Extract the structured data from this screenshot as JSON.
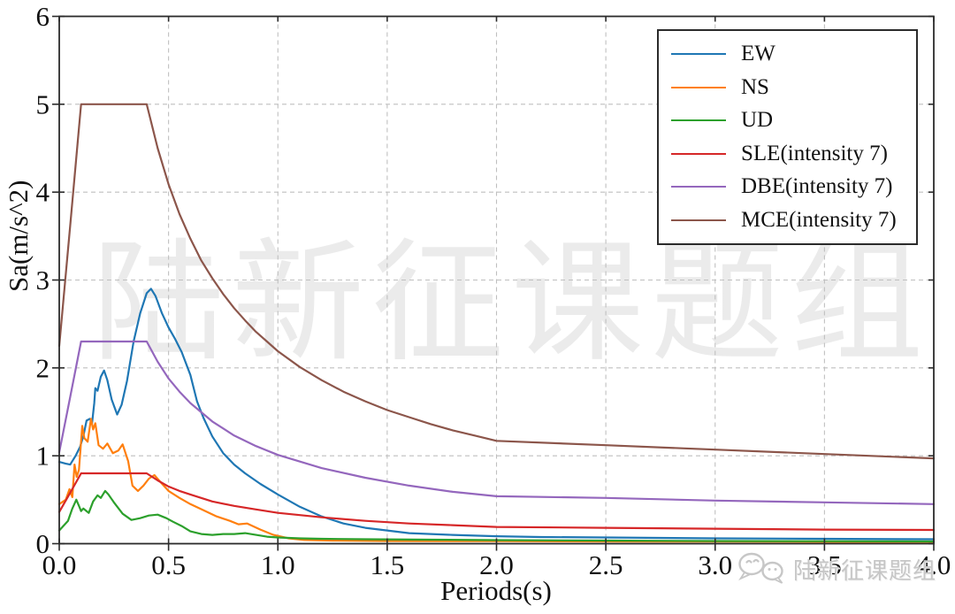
{
  "watermark": {
    "text": "陆新征课题组",
    "logo_text": "陆新征课题组"
  },
  "chart_data": {
    "type": "line",
    "title": "",
    "xlabel": "Periods(s)",
    "ylabel": "Sa(m/s^2)",
    "xlim": [
      0,
      4
    ],
    "ylim": [
      0,
      6
    ],
    "xtick_labels": [
      "0.0",
      "0.5",
      "1.0",
      "1.5",
      "2.0",
      "2.5",
      "3.0",
      "3.5",
      "4.0"
    ],
    "ytick_labels": [
      "0",
      "1",
      "2",
      "3",
      "4",
      "5",
      "6"
    ],
    "grid": true,
    "grid_style": "dashed",
    "grid_color": "#bfbfbf",
    "legend_position": "upper right",
    "series": [
      {
        "name": "EW",
        "color": "#1f77b4",
        "points": [
          [
            0,
            0.93
          ],
          [
            0.03,
            0.91
          ],
          [
            0.05,
            0.9
          ],
          [
            0.075,
            1.0
          ],
          [
            0.095,
            1.1
          ],
          [
            0.11,
            1.22
          ],
          [
            0.125,
            1.4
          ],
          [
            0.14,
            1.42
          ],
          [
            0.15,
            1.37
          ],
          [
            0.16,
            1.6
          ],
          [
            0.165,
            1.77
          ],
          [
            0.175,
            1.74
          ],
          [
            0.19,
            1.9
          ],
          [
            0.205,
            1.97
          ],
          [
            0.22,
            1.86
          ],
          [
            0.24,
            1.64
          ],
          [
            0.265,
            1.47
          ],
          [
            0.285,
            1.58
          ],
          [
            0.31,
            1.85
          ],
          [
            0.34,
            2.3
          ],
          [
            0.37,
            2.62
          ],
          [
            0.4,
            2.85
          ],
          [
            0.42,
            2.9
          ],
          [
            0.44,
            2.82
          ],
          [
            0.47,
            2.62
          ],
          [
            0.5,
            2.46
          ],
          [
            0.53,
            2.33
          ],
          [
            0.56,
            2.18
          ],
          [
            0.6,
            1.92
          ],
          [
            0.63,
            1.62
          ],
          [
            0.66,
            1.43
          ],
          [
            0.7,
            1.22
          ],
          [
            0.75,
            1.03
          ],
          [
            0.8,
            0.9
          ],
          [
            0.85,
            0.8
          ],
          [
            0.92,
            0.68
          ],
          [
            1.0,
            0.56
          ],
          [
            1.1,
            0.42
          ],
          [
            1.2,
            0.31
          ],
          [
            1.3,
            0.23
          ],
          [
            1.4,
            0.18
          ],
          [
            1.5,
            0.15
          ],
          [
            1.6,
            0.12
          ],
          [
            1.8,
            0.1
          ],
          [
            2.0,
            0.085
          ],
          [
            2.2,
            0.075
          ],
          [
            2.5,
            0.07
          ],
          [
            3.0,
            0.06
          ],
          [
            3.5,
            0.055
          ],
          [
            4.0,
            0.05
          ]
        ]
      },
      {
        "name": "NS",
        "color": "#ff7f0e",
        "points": [
          [
            0,
            0.45
          ],
          [
            0.03,
            0.5
          ],
          [
            0.047,
            0.62
          ],
          [
            0.06,
            0.53
          ],
          [
            0.07,
            0.9
          ],
          [
            0.08,
            0.76
          ],
          [
            0.09,
            0.84
          ],
          [
            0.105,
            1.34
          ],
          [
            0.115,
            1.2
          ],
          [
            0.13,
            1.16
          ],
          [
            0.145,
            1.42
          ],
          [
            0.155,
            1.3
          ],
          [
            0.165,
            1.37
          ],
          [
            0.18,
            1.12
          ],
          [
            0.2,
            1.08
          ],
          [
            0.22,
            1.14
          ],
          [
            0.245,
            1.03
          ],
          [
            0.27,
            1.06
          ],
          [
            0.29,
            1.13
          ],
          [
            0.315,
            0.94
          ],
          [
            0.335,
            0.66
          ],
          [
            0.36,
            0.6
          ],
          [
            0.385,
            0.66
          ],
          [
            0.41,
            0.74
          ],
          [
            0.435,
            0.78
          ],
          [
            0.46,
            0.71
          ],
          [
            0.5,
            0.6
          ],
          [
            0.55,
            0.52
          ],
          [
            0.6,
            0.45
          ],
          [
            0.66,
            0.38
          ],
          [
            0.72,
            0.31
          ],
          [
            0.78,
            0.26
          ],
          [
            0.82,
            0.22
          ],
          [
            0.86,
            0.23
          ],
          [
            0.92,
            0.16
          ],
          [
            0.98,
            0.1
          ],
          [
            1.05,
            0.06
          ],
          [
            1.12,
            0.042
          ],
          [
            1.25,
            0.035
          ],
          [
            1.5,
            0.03
          ],
          [
            2.0,
            0.028
          ],
          [
            2.5,
            0.025
          ],
          [
            3.0,
            0.023
          ],
          [
            3.5,
            0.021
          ],
          [
            4.0,
            0.02
          ]
        ]
      },
      {
        "name": "UD",
        "color": "#2ca02c",
        "points": [
          [
            0,
            0.15
          ],
          [
            0.04,
            0.26
          ],
          [
            0.06,
            0.4
          ],
          [
            0.078,
            0.5
          ],
          [
            0.09,
            0.43
          ],
          [
            0.1,
            0.37
          ],
          [
            0.11,
            0.4
          ],
          [
            0.135,
            0.35
          ],
          [
            0.155,
            0.48
          ],
          [
            0.175,
            0.55
          ],
          [
            0.19,
            0.52
          ],
          [
            0.21,
            0.6
          ],
          [
            0.225,
            0.56
          ],
          [
            0.25,
            0.47
          ],
          [
            0.29,
            0.34
          ],
          [
            0.33,
            0.27
          ],
          [
            0.37,
            0.29
          ],
          [
            0.41,
            0.32
          ],
          [
            0.45,
            0.33
          ],
          [
            0.49,
            0.29
          ],
          [
            0.52,
            0.25
          ],
          [
            0.56,
            0.2
          ],
          [
            0.6,
            0.14
          ],
          [
            0.65,
            0.11
          ],
          [
            0.7,
            0.1
          ],
          [
            0.75,
            0.11
          ],
          [
            0.8,
            0.11
          ],
          [
            0.85,
            0.12
          ],
          [
            0.9,
            0.1
          ],
          [
            0.95,
            0.08
          ],
          [
            1.0,
            0.07
          ],
          [
            1.1,
            0.06
          ],
          [
            1.2,
            0.055
          ],
          [
            1.4,
            0.05
          ],
          [
            1.7,
            0.045
          ],
          [
            2.0,
            0.04
          ],
          [
            2.5,
            0.035
          ],
          [
            3.0,
            0.03
          ],
          [
            3.5,
            0.028
          ],
          [
            4.0,
            0.025
          ]
        ]
      },
      {
        "name": "SLE(intensity 7)",
        "color": "#d62728",
        "points": [
          [
            0,
            0.36
          ],
          [
            0.05,
            0.58
          ],
          [
            0.1,
            0.8
          ],
          [
            0.4,
            0.8
          ],
          [
            0.45,
            0.72
          ],
          [
            0.5,
            0.65
          ],
          [
            0.55,
            0.6
          ],
          [
            0.6,
            0.56
          ],
          [
            0.7,
            0.48
          ],
          [
            0.8,
            0.43
          ],
          [
            0.9,
            0.39
          ],
          [
            1.0,
            0.35
          ],
          [
            1.2,
            0.3
          ],
          [
            1.4,
            0.26
          ],
          [
            1.6,
            0.23
          ],
          [
            1.8,
            0.21
          ],
          [
            2.0,
            0.19
          ],
          [
            2.5,
            0.18
          ],
          [
            3.0,
            0.17
          ],
          [
            3.5,
            0.16
          ],
          [
            4.0,
            0.156
          ]
        ]
      },
      {
        "name": "DBE(intensity 7)",
        "color": "#9467bd",
        "points": [
          [
            0,
            1.04
          ],
          [
            0.05,
            1.67
          ],
          [
            0.1,
            2.3
          ],
          [
            0.4,
            2.3
          ],
          [
            0.45,
            2.07
          ],
          [
            0.5,
            1.88
          ],
          [
            0.55,
            1.73
          ],
          [
            0.6,
            1.6
          ],
          [
            0.7,
            1.39
          ],
          [
            0.8,
            1.23
          ],
          [
            0.9,
            1.11
          ],
          [
            1.0,
            1.01
          ],
          [
            1.2,
            0.86
          ],
          [
            1.4,
            0.75
          ],
          [
            1.6,
            0.66
          ],
          [
            1.8,
            0.59
          ],
          [
            2.0,
            0.54
          ],
          [
            2.5,
            0.52
          ],
          [
            3.0,
            0.49
          ],
          [
            3.5,
            0.47
          ],
          [
            4.0,
            0.45
          ]
        ]
      },
      {
        "name": "MCE(intensity 7)",
        "color": "#8c564b",
        "points": [
          [
            0,
            2.25
          ],
          [
            0.05,
            3.62
          ],
          [
            0.1,
            5.0
          ],
          [
            0.4,
            5.0
          ],
          [
            0.45,
            4.5
          ],
          [
            0.5,
            4.09
          ],
          [
            0.55,
            3.75
          ],
          [
            0.6,
            3.47
          ],
          [
            0.65,
            3.22
          ],
          [
            0.7,
            3.02
          ],
          [
            0.75,
            2.84
          ],
          [
            0.8,
            2.68
          ],
          [
            0.85,
            2.54
          ],
          [
            0.9,
            2.41
          ],
          [
            0.95,
            2.3
          ],
          [
            1.0,
            2.19
          ],
          [
            1.1,
            2.01
          ],
          [
            1.2,
            1.86
          ],
          [
            1.3,
            1.73
          ],
          [
            1.4,
            1.62
          ],
          [
            1.5,
            1.52
          ],
          [
            1.6,
            1.44
          ],
          [
            1.7,
            1.36
          ],
          [
            1.8,
            1.29
          ],
          [
            1.9,
            1.23
          ],
          [
            2.0,
            1.17
          ],
          [
            2.5,
            1.12
          ],
          [
            3.0,
            1.07
          ],
          [
            3.5,
            1.02
          ],
          [
            4.0,
            0.97
          ]
        ]
      }
    ]
  }
}
